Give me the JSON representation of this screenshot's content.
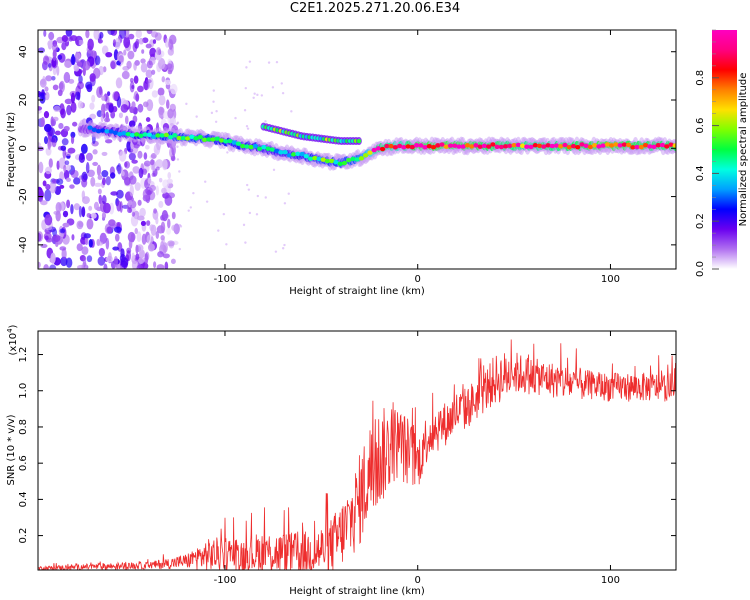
{
  "figure": {
    "title": "C2E1.2025.271.20.06.E34"
  },
  "chart_data": [
    {
      "type": "heatmap",
      "name": "spectrogram",
      "xlabel": "Height of straight line (km)",
      "ylabel": "Frequency (Hz)",
      "xlim": [
        -197,
        134
      ],
      "ylim": [
        -50,
        49
      ],
      "xticks": [
        -100,
        0,
        100
      ],
      "yticks": [
        -40,
        -20,
        0,
        20,
        40
      ],
      "colorbar": {
        "label": "Normalized spectral amplitude",
        "range": [
          0,
          1
        ],
        "ticks": [
          0.0,
          0.2,
          0.4,
          0.6,
          0.8
        ],
        "colors": [
          "#ffffff",
          "#b070f0",
          "#6a00f0",
          "#0000ff",
          "#00a0ff",
          "#00ffe0",
          "#00ff40",
          "#80ff00",
          "#ffe000",
          "#ff8000",
          "#ff0000",
          "#ff0080",
          "#ff00c0"
        ]
      },
      "ridge": {
        "x": [
          -170,
          -150,
          -130,
          -110,
          -100,
          -90,
          -80,
          -70,
          -60,
          -50,
          -40,
          -30,
          -20,
          -10,
          0,
          20,
          40,
          60,
          80,
          100,
          120,
          134
        ],
        "freq": [
          8,
          6,
          5,
          4,
          3,
          1,
          0,
          -2,
          -3,
          -5,
          -6,
          -4,
          0,
          1,
          1,
          1,
          1,
          1,
          1,
          1,
          1,
          1
        ],
        "amplitude": [
          0.25,
          0.4,
          0.5,
          0.5,
          0.45,
          0.45,
          0.4,
          0.4,
          0.45,
          0.5,
          0.5,
          0.55,
          0.9,
          0.8,
          0.95,
          0.95,
          0.9,
          0.85,
          0.9,
          0.95,
          0.9,
          0.9
        ]
      },
      "upper_branch": {
        "x": [
          -80,
          -70,
          -60,
          -50,
          -40,
          -30
        ],
        "freq": [
          9,
          7,
          5,
          4,
          3,
          3
        ]
      },
      "noise_region": {
        "x": [
          -197,
          -125
        ],
        "freq": [
          -50,
          49
        ]
      }
    },
    {
      "type": "line",
      "name": "snr",
      "xlabel": "Height of straight line (km)",
      "ylabel": "SNR (10 * v/v)",
      "scale_label": "(x10",
      "scale_exp": "4",
      "xlim": [
        -197,
        134
      ],
      "ylim": [
        0.01,
        1.33
      ],
      "xticks": [
        -100,
        0,
        100
      ],
      "yticks": [
        0.2,
        0.4,
        0.6,
        0.8,
        1.0,
        1.2
      ],
      "color": "#ee2e2e",
      "series": [
        {
          "name": "SNR",
          "x": [
            -197,
            -180,
            -160,
            -140,
            -130,
            -120,
            -110,
            -100,
            -90,
            -80,
            -70,
            -60,
            -50,
            -45,
            -40,
            -35,
            -30,
            -25,
            -20,
            -15,
            -10,
            -5,
            0,
            5,
            10,
            15,
            20,
            25,
            30,
            35,
            40,
            45,
            50,
            60,
            70,
            80,
            90,
            100,
            110,
            120,
            134
          ],
          "y": [
            0.02,
            0.025,
            0.03,
            0.035,
            0.045,
            0.06,
            0.09,
            0.1,
            0.09,
            0.11,
            0.1,
            0.1,
            0.12,
            0.14,
            0.2,
            0.28,
            0.4,
            0.55,
            0.62,
            0.68,
            0.72,
            0.66,
            0.6,
            0.75,
            0.8,
            0.82,
            0.88,
            0.9,
            0.95,
            1.0,
            1.06,
            1.08,
            1.1,
            1.08,
            1.06,
            1.04,
            1.03,
            1.02,
            1.02,
            1.02,
            1.02
          ],
          "spread": [
            0.01,
            0.015,
            0.02,
            0.02,
            0.03,
            0.04,
            0.09,
            0.1,
            0.1,
            0.12,
            0.12,
            0.12,
            0.14,
            0.16,
            0.18,
            0.22,
            0.26,
            0.28,
            0.28,
            0.24,
            0.2,
            0.2,
            0.15,
            0.14,
            0.14,
            0.12,
            0.12,
            0.12,
            0.12,
            0.12,
            0.14,
            0.14,
            0.12,
            0.1,
            0.1,
            0.1,
            0.08,
            0.08,
            0.08,
            0.08,
            0.08
          ]
        }
      ]
    }
  ]
}
